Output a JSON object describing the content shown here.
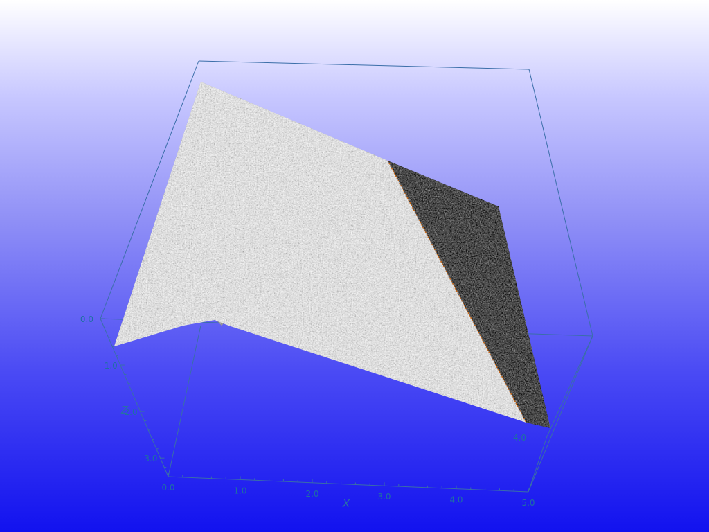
{
  "colors": {
    "box": "#3a6ea8",
    "tick_label": "#1f6fa3",
    "surface_light": "#e4e4e4",
    "surface_dark": "#1a1a1a",
    "ridge": "#c86a1a"
  },
  "chart_data": {
    "type": "surface3d",
    "x_axis": {
      "label": "X",
      "range": [
        0.0,
        5.0
      ],
      "ticks": [
        "0.0",
        "1.0",
        "2.0",
        "3.0",
        "4.0",
        "5.0"
      ]
    },
    "z_axis": {
      "label": "Z",
      "range": [
        0.0,
        4.0
      ],
      "ticks": [
        "0.0",
        "1.0",
        "2.0",
        "3.0",
        "4.0"
      ]
    },
    "surface": {
      "shading": "grayscale noisy texture",
      "regions": [
        {
          "name": "",
          "tone": "light"
        },
        {
          "name": "",
          "tone": "dark"
        }
      ]
    },
    "bounding_box": true,
    "grid": false
  }
}
